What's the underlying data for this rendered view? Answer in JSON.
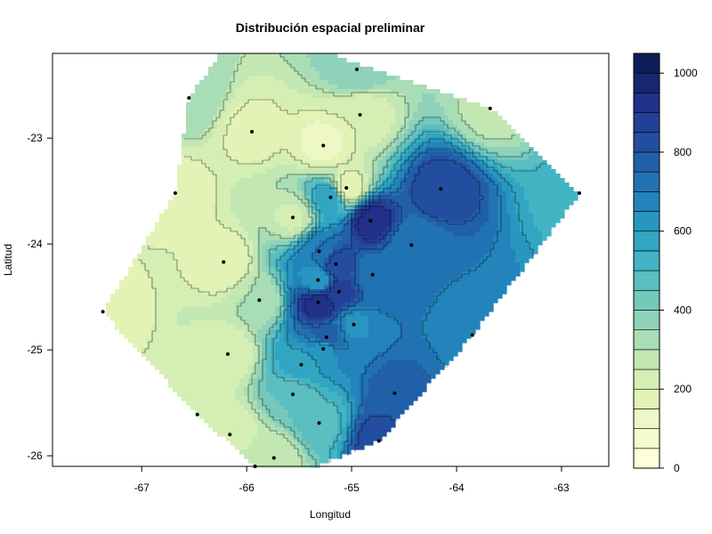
{
  "chart_data": {
    "type": "filled-contour",
    "title": "Distribución espacial preliminar",
    "xlabel": "Longitud",
    "ylabel": "Latitud",
    "xlim": [
      -67.85,
      -62.55
    ],
    "ylim": [
      -26.1,
      -22.2
    ],
    "x_ticks": [
      -67,
      -66,
      -65,
      -64,
      -63
    ],
    "y_ticks": [
      -23,
      -24,
      -25,
      -26
    ],
    "x_tick_labels": [
      "-67",
      "-66",
      "-65",
      "-64",
      "-63"
    ],
    "y_tick_labels": [
      "-23",
      "-24",
      "-25",
      "-26"
    ],
    "colorbar": {
      "range": [
        0,
        1050
      ],
      "step": 50,
      "tick_values": [
        0,
        200,
        400,
        600,
        800,
        1000
      ],
      "tick_labels": [
        "0",
        "200",
        "400",
        "600",
        "800",
        "1000"
      ],
      "palette": [
        "#ffffd9",
        "#f7fccf",
        "#eef8c6",
        "#e2f3b5",
        "#d4eeb3",
        "#c3e7b3",
        "#a9ddb5",
        "#8fd2b9",
        "#74c8bc",
        "#5bbec0",
        "#42b4c3",
        "#31a5c2",
        "#2896c0",
        "#2284bb",
        "#2172b3",
        "#225fa9",
        "#234ea0",
        "#243f96",
        "#21318a",
        "#18266f",
        "#0f1d56"
      ]
    },
    "stations": [
      {
        "lon": -64.95,
        "lat": -22.35
      },
      {
        "lon": -66.55,
        "lat": -22.62
      },
      {
        "lon": -63.68,
        "lat": -22.72
      },
      {
        "lon": -64.92,
        "lat": -22.78
      },
      {
        "lon": -65.95,
        "lat": -22.94
      },
      {
        "lon": -65.27,
        "lat": -23.07
      },
      {
        "lon": -65.05,
        "lat": -23.47
      },
      {
        "lon": -64.15,
        "lat": -23.48
      },
      {
        "lon": -62.83,
        "lat": -23.52
      },
      {
        "lon": -66.68,
        "lat": -23.52
      },
      {
        "lon": -65.2,
        "lat": -23.56
      },
      {
        "lon": -65.56,
        "lat": -23.75
      },
      {
        "lon": -64.82,
        "lat": -23.78
      },
      {
        "lon": -64.43,
        "lat": -24.01
      },
      {
        "lon": -65.31,
        "lat": -24.07
      },
      {
        "lon": -66.22,
        "lat": -24.17
      },
      {
        "lon": -65.15,
        "lat": -24.19
      },
      {
        "lon": -64.8,
        "lat": -24.29
      },
      {
        "lon": -65.32,
        "lat": -24.34
      },
      {
        "lon": -65.12,
        "lat": -24.45
      },
      {
        "lon": -65.88,
        "lat": -24.53
      },
      {
        "lon": -65.32,
        "lat": -24.55
      },
      {
        "lon": -67.37,
        "lat": -24.64
      },
      {
        "lon": -64.98,
        "lat": -24.76
      },
      {
        "lon": -63.85,
        "lat": -24.86
      },
      {
        "lon": -65.24,
        "lat": -24.88
      },
      {
        "lon": -65.27,
        "lat": -24.99
      },
      {
        "lon": -66.18,
        "lat": -25.04
      },
      {
        "lon": -65.48,
        "lat": -25.14
      },
      {
        "lon": -65.56,
        "lat": -25.42
      },
      {
        "lon": -64.59,
        "lat": -25.41
      },
      {
        "lon": -66.47,
        "lat": -25.61
      },
      {
        "lon": -65.31,
        "lat": -25.69
      },
      {
        "lon": -66.16,
        "lat": -25.8
      },
      {
        "lon": -64.74,
        "lat": -25.86
      },
      {
        "lon": -65.74,
        "lat": -26.02
      },
      {
        "lon": -65.92,
        "lat": -26.1
      }
    ]
  }
}
